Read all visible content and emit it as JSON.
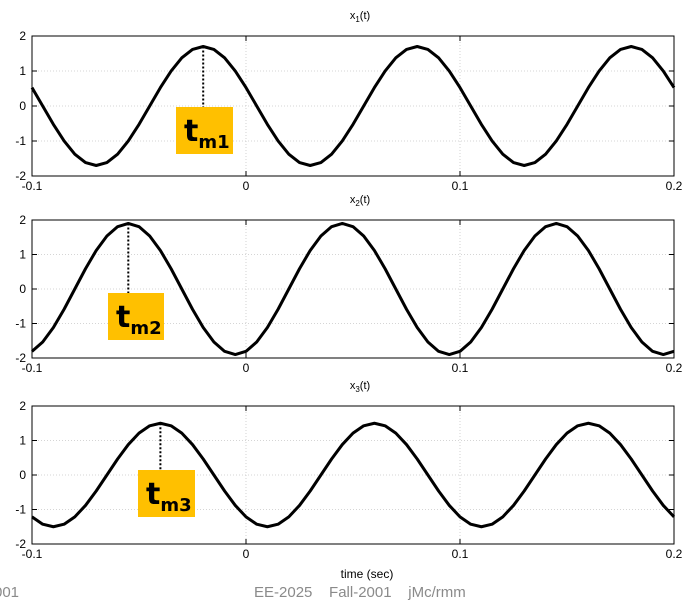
{
  "chart_data": {
    "type": "line",
    "xlabel": "time  (sec)",
    "xlim": [
      -0.1,
      0.2
    ],
    "ylim": [
      -2,
      2
    ],
    "x_ticks": [
      -0.1,
      0,
      0.1,
      0.2
    ],
    "x_tick_labels": [
      "-0.1",
      "0",
      "0.1",
      "0.2"
    ],
    "y_ticks": [
      -2,
      -1,
      0,
      1,
      2
    ],
    "y_tick_labels": [
      "-2",
      "-1",
      "0",
      "1",
      "2"
    ],
    "grid": true,
    "subplots": [
      {
        "id": "x1",
        "title_main": "x",
        "title_sub": "1",
        "title_tail": "(t)",
        "amplitude": 1.7,
        "period": 0.1,
        "peak_time": -0.02,
        "marker_main": "t",
        "marker_sub": "m1"
      },
      {
        "id": "x2",
        "title_main": "x",
        "title_sub": "2",
        "title_tail": "(t)",
        "amplitude": 1.9,
        "period": 0.1,
        "peak_time": -0.055,
        "marker_main": "t",
        "marker_sub": "m2"
      },
      {
        "id": "x3",
        "title_main": "x",
        "title_sub": "3",
        "title_tail": "(t)",
        "amplitude": 1.5,
        "period": 0.1,
        "peak_time": -0.04,
        "marker_main": "t",
        "marker_sub": "m3"
      }
    ]
  },
  "footer": {
    "left": "001",
    "center": "EE-2025    Fall-2001    jMc/rmm"
  }
}
